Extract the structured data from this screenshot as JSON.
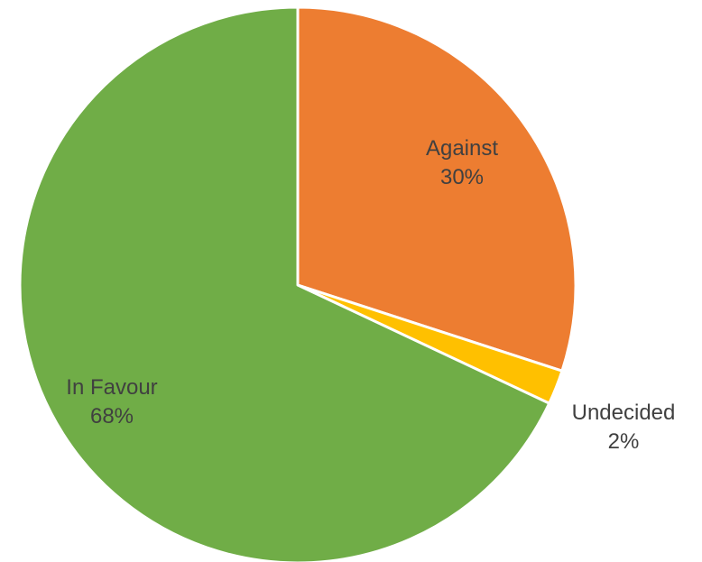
{
  "chart_data": {
    "type": "pie",
    "title": "",
    "legend": "none",
    "start_angle_deg": 0,
    "direction": "clockwise",
    "slices": [
      {
        "label": "Against",
        "value": 30,
        "percent_label": "30%",
        "color": "#ED7D31"
      },
      {
        "label": "Undecided",
        "value": 2,
        "percent_label": "2%",
        "color": "#FFC000"
      },
      {
        "label": "In Favour",
        "value": 68,
        "percent_label": "68%",
        "color": "#70AD47"
      }
    ]
  }
}
